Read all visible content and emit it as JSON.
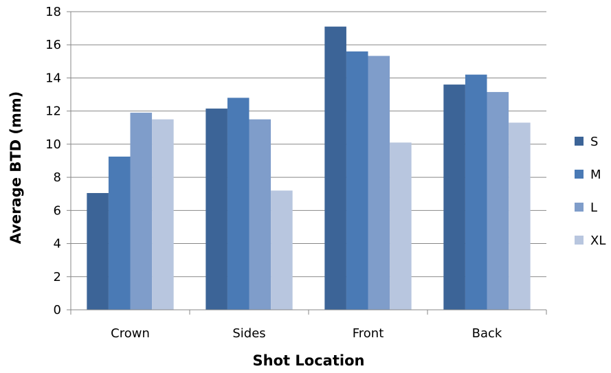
{
  "chart_data": {
    "type": "bar",
    "title": "",
    "xlabel": "Shot Location",
    "ylabel": "Average BTD (mm)",
    "categories": [
      "Crown",
      "Sides",
      "Front",
      "Back"
    ],
    "ylim": [
      0,
      18
    ],
    "yticks": [
      0,
      2,
      4,
      6,
      8,
      10,
      12,
      14,
      16,
      18
    ],
    "grid": true,
    "legend_position": "right",
    "series": [
      {
        "name": "S",
        "color": "#3C6497",
        "values": [
          7.05,
          12.15,
          17.1,
          13.6
        ]
      },
      {
        "name": "M",
        "color": "#4A7AB5",
        "values": [
          9.25,
          12.8,
          15.6,
          14.2
        ]
      },
      {
        "name": "L",
        "color": "#7F9DCA",
        "values": [
          11.9,
          11.5,
          15.33,
          13.15
        ]
      },
      {
        "name": "XL",
        "color": "#B8C6DF",
        "values": [
          11.5,
          7.2,
          10.1,
          11.3
        ]
      }
    ]
  }
}
